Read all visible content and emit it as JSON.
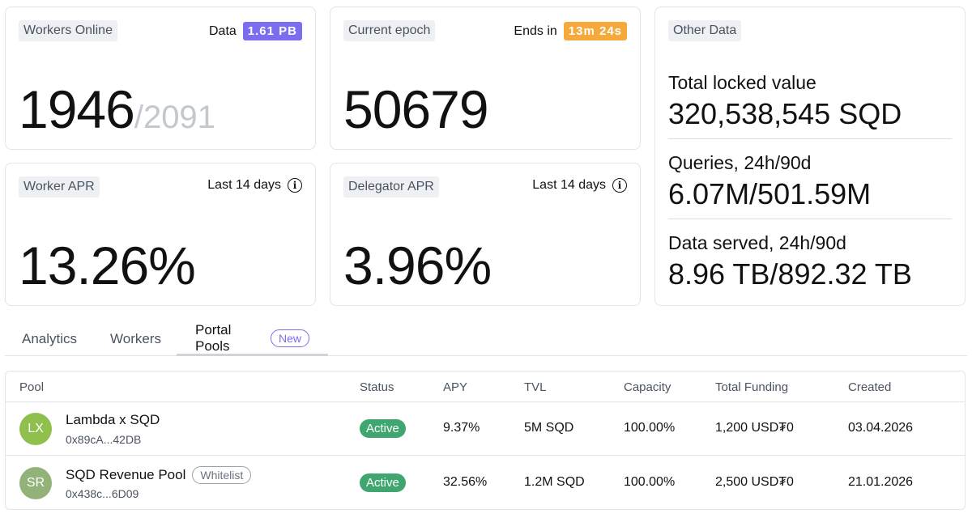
{
  "workers_card": {
    "label": "Workers Online",
    "data_label": "Data",
    "data_value": "1.61 PB",
    "online": "1946",
    "total": "/2091"
  },
  "epoch_card": {
    "label": "Current epoch",
    "ends_label": "Ends in",
    "ends_value": "13m 24s",
    "value": "50679"
  },
  "worker_apr_card": {
    "label": "Worker APR",
    "period": "Last 14 days",
    "value": "13.26%"
  },
  "delegator_apr_card": {
    "label": "Delegator APR",
    "period": "Last 14 days",
    "value": "3.96%"
  },
  "other_card": {
    "label": "Other Data",
    "items": [
      {
        "title": "Total locked value",
        "value": "320,538,545 SQD"
      },
      {
        "title": "Queries, 24h/90d",
        "value": "6.07M/501.59M"
      },
      {
        "title": "Data served, 24h/90d",
        "value": "8.96 TB/892.32 TB"
      }
    ]
  },
  "tabs": {
    "analytics": "Analytics",
    "workers": "Workers",
    "portal_pools": "Portal Pools",
    "new_badge": "New"
  },
  "table": {
    "headers": {
      "pool": "Pool",
      "status": "Status",
      "apy": "APY",
      "tvl": "TVL",
      "capacity": "Capacity",
      "total_funding": "Total Funding",
      "created": "Created"
    },
    "rows": [
      {
        "initials": "LX",
        "avatar_color": "#8fbf4d",
        "name": "Lambda x SQD",
        "address": "0x89cA...42DB",
        "status": "Active",
        "apy": "9.37%",
        "tvl": "5M SQD",
        "capacity": "100.00%",
        "funding": "1,200 USD₮0",
        "created": "03.04.2026"
      },
      {
        "initials": "SR",
        "avatar_color": "#93b27a",
        "name": "SQD Revenue Pool",
        "tag": "Whitelist",
        "address": "0x438c...6D09",
        "status": "Active",
        "apy": "32.56%",
        "tvl": "1.2M SQD",
        "capacity": "100.00%",
        "funding": "2,500 USD₮0",
        "created": "21.01.2026"
      }
    ]
  },
  "colors": {
    "accent_purple": "#7b6cf0",
    "accent_orange": "#f5a93a",
    "status_green": "#3fa66f"
  }
}
